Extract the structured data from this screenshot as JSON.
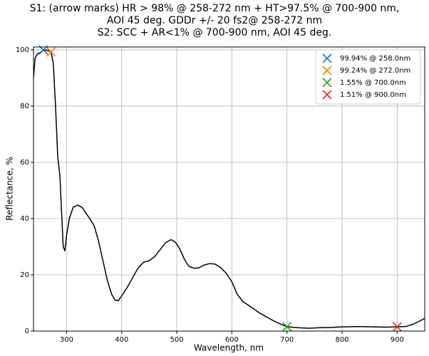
{
  "chart_data": {
    "type": "line",
    "title": [
      "S1: (arrow marks) HR > 98% @ 258-272 nm  + HT>97.5% @ 700-900 nm,",
      "AOI 45 deg. GDDr +/- 20 fs2@ 258-272 nm",
      "S2: SCC + AR<1% @ 700-900 nm, AOI 45 deg."
    ],
    "x_label": "Wavelength, nm",
    "y_label": "Reflectance, %",
    "xlim": [
      240,
      950
    ],
    "ylim": [
      0,
      101
    ],
    "xticks": [
      300,
      400,
      500,
      600,
      700,
      800,
      900
    ],
    "yticks": [
      0,
      20,
      40,
      60,
      80,
      100
    ],
    "grid": true,
    "legend": "upper right",
    "x": [
      240,
      243,
      247,
      252,
      258,
      265,
      272,
      276,
      280,
      284,
      288,
      291,
      294,
      297,
      300,
      305,
      312,
      320,
      328,
      335,
      342,
      350,
      358,
      366,
      374,
      382,
      388,
      394,
      400,
      410,
      420,
      430,
      440,
      450,
      460,
      470,
      480,
      490,
      498,
      506,
      514,
      522,
      532,
      540,
      550,
      560,
      570,
      580,
      590,
      600,
      610,
      620,
      635,
      650,
      665,
      680,
      700,
      720,
      740,
      760,
      780,
      800,
      830,
      860,
      880,
      900,
      915,
      930,
      950
    ],
    "series": [
      {
        "color": "#000000",
        "values": [
          90,
          97,
          98.5,
          99,
          99.94,
          99.8,
          99.24,
          95,
          80,
          62,
          55,
          42,
          30,
          28.5,
          34,
          40,
          44,
          44.8,
          44,
          42,
          40,
          37.5,
          32,
          25,
          18,
          13,
          11,
          10.8,
          12.5,
          15.5,
          19,
          22.5,
          24.5,
          25,
          26.5,
          29,
          31.5,
          32.5,
          31.5,
          29,
          25.5,
          23,
          22.3,
          22.5,
          23.5,
          24,
          23.8,
          22.5,
          20.5,
          17.5,
          13,
          10.5,
          8.5,
          6.5,
          4.8,
          3.2,
          1.55,
          1.2,
          1.0,
          1.2,
          1.3,
          1.5,
          1.6,
          1.5,
          1.4,
          1.51,
          1.6,
          2.5,
          4.5
        ]
      }
    ],
    "markers": [
      {
        "name": "99.94% @ 258.0nm",
        "color": "#1f77b4",
        "x": 258,
        "y": 99.94
      },
      {
        "name": "99.24% @ 272.0nm",
        "color": "#ff7f0e",
        "x": 272,
        "y": 99.24
      },
      {
        "name": "1.55% @ 700.0nm",
        "color": "#2ca02c",
        "x": 700,
        "y": 1.55
      },
      {
        "name": "1.51% @ 900.0nm",
        "color": "#d62728",
        "x": 900,
        "y": 1.51
      }
    ]
  }
}
